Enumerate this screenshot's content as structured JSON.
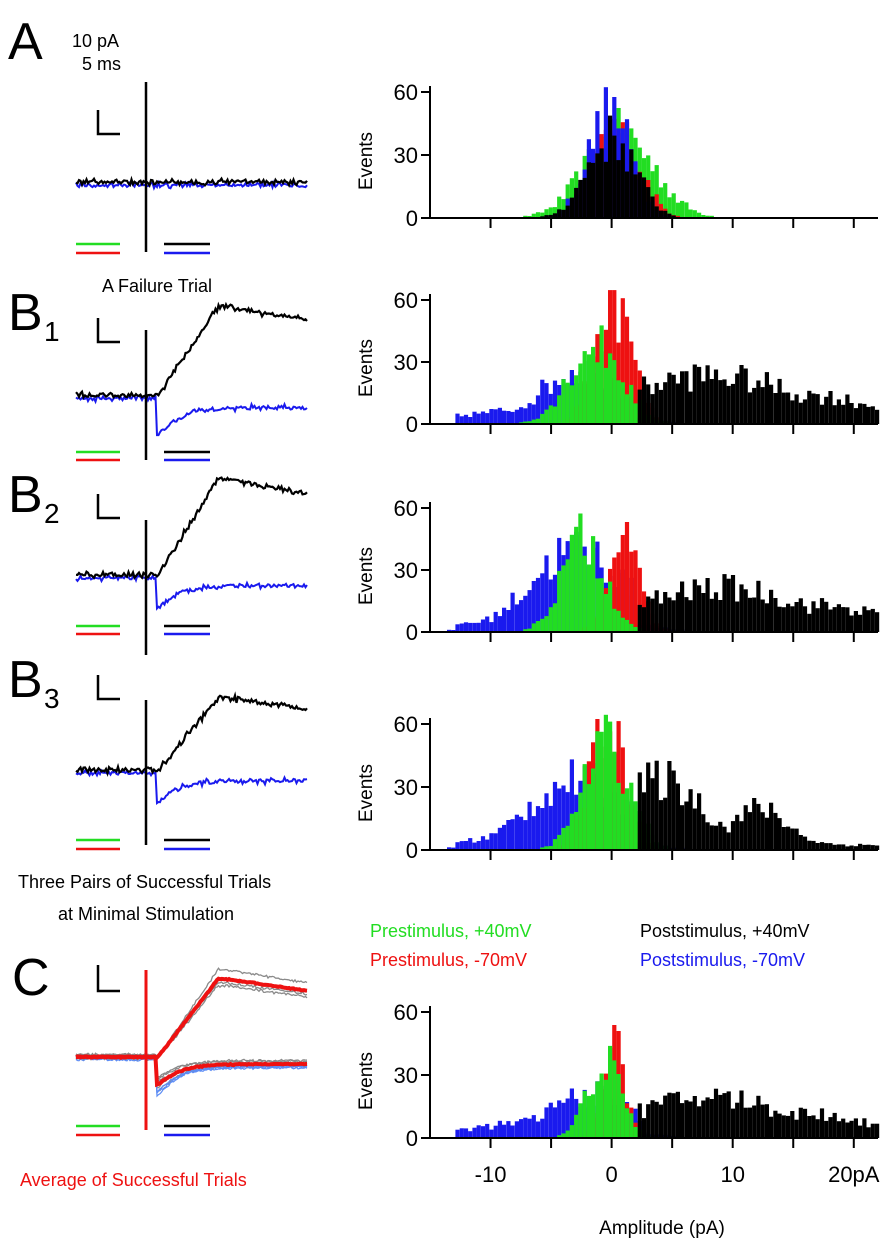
{
  "panel_labels": {
    "A": "A",
    "B": "B",
    "B1_sub": "1",
    "B2_sub": "2",
    "B3_sub": "3",
    "C": "C"
  },
  "scale_bar": {
    "current": "10 pA",
    "time": "5 ms"
  },
  "captions": {
    "failure": "A Failure Trial",
    "success_line1": "Three Pairs of Successful Trials",
    "success_line2": "at Minimal Stimulation",
    "average": "Average of Successful Trials"
  },
  "legend": {
    "pre_pos": "Prestimulus, +40mV",
    "pre_neg": "Prestimulus, -70mV",
    "post_pos": "Poststimulus, +40mV",
    "post_neg": "Poststimulus, -70mV"
  },
  "colors": {
    "pre_pos": "#22dd22",
    "pre_neg": "#ee1111",
    "post_pos": "#000000",
    "post_neg": "#1a1aee",
    "avg": "#ee1111",
    "trace_gray": "#8a8a8a",
    "trace_lightblue": "#5d8df5"
  },
  "chart_data": [
    {
      "type": "bar",
      "panel": "A",
      "ylabel": "Events",
      "xlim": [
        -15,
        22
      ],
      "ylim": [
        0,
        60
      ],
      "yticks": [
        0,
        30,
        60
      ],
      "series": [
        {
          "name": "Prestimulus, +40mV",
          "color": "#22dd22",
          "peak": 42,
          "center": 0.5,
          "width": 2.8
        },
        {
          "name": "Prestimulus, -70mV",
          "color": "#ee1111",
          "peak": 44,
          "center": 0.2,
          "width": 1.9
        },
        {
          "name": "Poststimulus, -70mV",
          "color": "#1a1aee",
          "peak": 52,
          "center": -0.3,
          "width": 1.8
        },
        {
          "name": "Poststimulus, +40mV",
          "color": "#000000",
          "peak": 40,
          "center": -0.2,
          "width": 2.0
        }
      ]
    },
    {
      "type": "bar",
      "panel": "B1",
      "ylabel": "Events",
      "xlim": [
        -15,
        22
      ],
      "ylim": [
        0,
        60
      ],
      "yticks": [
        0,
        30,
        60
      ],
      "series": [
        {
          "name": "Poststimulus, -70mV",
          "color": "#1a1aee",
          "peak": 28,
          "center": -2.5,
          "width": 3.5
        },
        {
          "name": "Prestimulus, -70mV",
          "color": "#ee1111",
          "peak": 62,
          "center": 0.0,
          "width": 1.5
        },
        {
          "name": "Prestimulus, +40mV",
          "color": "#22dd22",
          "peak": 40,
          "center": -1.5,
          "width": 2.2
        },
        {
          "name": "Poststimulus, +40mV",
          "color": "#000000",
          "peak": 22,
          "center": 8.0,
          "width": 7.0
        }
      ]
    },
    {
      "type": "bar",
      "panel": "B2",
      "ylabel": "Events",
      "xlim": [
        -15,
        22
      ],
      "ylim": [
        0,
        60
      ],
      "yticks": [
        0,
        30,
        60
      ],
      "series": [
        {
          "name": "Poststimulus, -70mV",
          "color": "#1a1aee",
          "peak": 42,
          "center": -3.0,
          "width": 3.8
        },
        {
          "name": "Prestimulus, -70mV",
          "color": "#ee1111",
          "peak": 45,
          "center": 0.8,
          "width": 1.3
        },
        {
          "name": "Prestimulus, +40mV",
          "color": "#22dd22",
          "peak": 47,
          "center": -2.5,
          "width": 1.8
        },
        {
          "name": "Poststimulus, +40mV",
          "color": "#000000",
          "peak": 20,
          "center": 9.0,
          "width": 6.5
        }
      ]
    },
    {
      "type": "bar",
      "panel": "B3",
      "ylabel": "Events",
      "xlim": [
        -15,
        22
      ],
      "ylim": [
        0,
        60
      ],
      "yticks": [
        0,
        30,
        60
      ],
      "series": [
        {
          "name": "Poststimulus, -70mV",
          "color": "#1a1aee",
          "peak": 35,
          "center": -3.0,
          "width": 4.0
        },
        {
          "name": "Prestimulus, -70mV",
          "color": "#ee1111",
          "peak": 60,
          "center": -0.5,
          "width": 1.5
        },
        {
          "name": "Prestimulus, +40mV",
          "color": "#22dd22",
          "peak": 53,
          "center": -0.6,
          "width": 1.9
        },
        {
          "name": "Poststimulus, +40mV",
          "color": "#000000",
          "peak": 33,
          "center": 4.0,
          "width": 3.2
        }
      ]
    },
    {
      "type": "bar",
      "panel": "C",
      "ylabel": "Events",
      "xlabel": "Amplitude (pA)",
      "xlim": [
        -15,
        22
      ],
      "ylim": [
        0,
        60
      ],
      "yticks": [
        0,
        30,
        60
      ],
      "xticks": [
        -10,
        0,
        10,
        20
      ],
      "xtick_labels": [
        "-10",
        "0",
        "10",
        "20pA"
      ],
      "series": [
        {
          "name": "Poststimulus, -70mV",
          "color": "#1a1aee",
          "peak": 22,
          "center": -2.0,
          "width": 3.5
        },
        {
          "name": "Prestimulus, -70mV",
          "color": "#ee1111",
          "peak": 50,
          "center": 0.0,
          "width": 0.9
        },
        {
          "name": "Prestimulus, +40mV",
          "color": "#22dd22",
          "peak": 38,
          "center": -0.8,
          "width": 1.4
        },
        {
          "name": "Poststimulus, +40mV",
          "color": "#000000",
          "peak": 18,
          "center": 8.0,
          "width": 6.0
        }
      ]
    }
  ]
}
